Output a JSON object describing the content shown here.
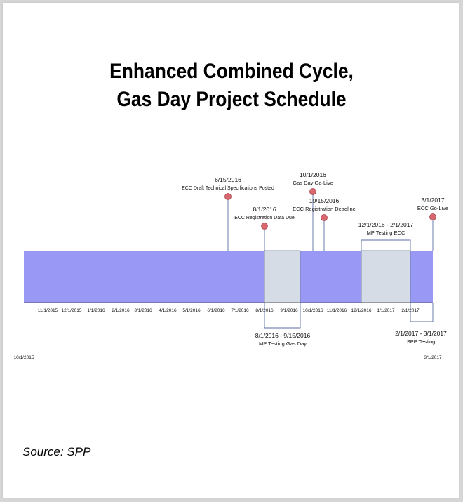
{
  "title_line1": "Enhanced Combined Cycle,",
  "title_line2": "Gas Day Project Schedule",
  "source": "Source: SPP",
  "timeline": {
    "start_label": "10/1/2015",
    "end_label": "3/1/2017",
    "bar_color": "#9999f5",
    "highlight_color": "#d6dce6",
    "marker_color": "#d9676f",
    "ticks": [
      "11/1/2015",
      "12/1/2015",
      "1/1/2016",
      "2/1/2016",
      "3/1/2016",
      "4/1/2016",
      "5/1/2016",
      "6/1/2016",
      "7/1/2016",
      "8/1/2016",
      "9/1/2016",
      "10/1/2016",
      "11/1/2016",
      "12/1/2016",
      "1/1/2017",
      "2/1/2017"
    ],
    "milestones": [
      {
        "date": "6/15/2016",
        "label": "ECC Draft Technical Specifications Posted"
      },
      {
        "date": "8/1/2016",
        "label": "ECC Registration Data Due"
      },
      {
        "date": "10/1/2016",
        "label": "Gas Day Go-Live"
      },
      {
        "date": "10/15/2016",
        "label": "ECC Registration Deadline"
      },
      {
        "date": "3/1/2017",
        "label": "ECC Go-Live"
      }
    ],
    "periods": [
      {
        "range": "12/1/2016 - 2/1/2017",
        "label": "MP Testing ECC"
      },
      {
        "range": "8/1/2016 - 9/15/2016",
        "label": "MP Testing Gas Day"
      },
      {
        "range": "2/1/2017 - 3/1/2017",
        "label": "SPP Testing"
      }
    ]
  }
}
